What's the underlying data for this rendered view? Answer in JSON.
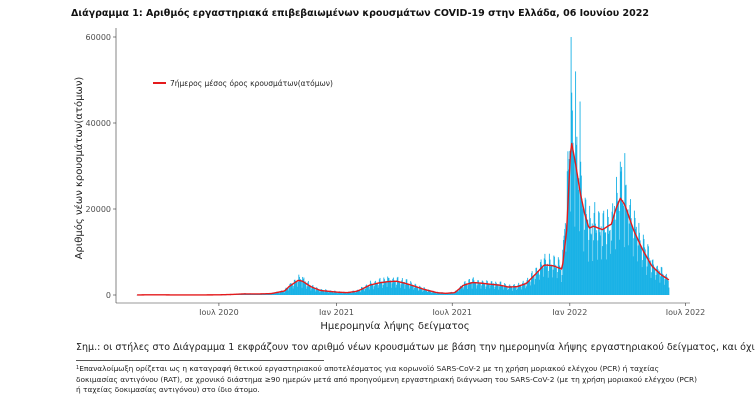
{
  "chart_data": {
    "type": "bar",
    "title": "Διάγραμμα 1: Αριθμός εργαστηριακά επιβεβαιωμένων κρουσμάτων COVID-19 στην Ελλάδα, 06 Ιουνίου 2022",
    "xlabel": "Ημερομηνία λήψης δείγματος",
    "ylabel": "Αριθμός νέων κρουσμάτων(ατόμων)",
    "x_tick_labels": [
      "Ιουλ 2020",
      "Ιαν 2021",
      "Ιουλ 2021",
      "Ιαν 2022",
      "Ιουλ 2022"
    ],
    "y_tick_labels": [
      "0",
      "20000",
      "40000",
      "60000"
    ],
    "ylim": [
      0,
      62000
    ],
    "grid": false,
    "legend_position": "top-left",
    "series": [
      {
        "name": "",
        "kind": "bar",
        "color": "#1AB2E6",
        "description_of_values": "daily new cases by sample date (weekly-resolution estimates)"
      },
      {
        "name": "7ήμερος μέσος όρος κρουσμάτων(ατόμων)",
        "kind": "line",
        "color": "#E41A1C"
      }
    ],
    "x": [
      "2020-02-24",
      "2020-03-16",
      "2020-04-06",
      "2020-04-27",
      "2020-05-18",
      "2020-06-08",
      "2020-06-29",
      "2020-07-20",
      "2020-08-10",
      "2020-08-31",
      "2020-09-21",
      "2020-10-12",
      "2020-10-19",
      "2020-10-26",
      "2020-11-02",
      "2020-11-09",
      "2020-11-16",
      "2020-11-23",
      "2020-11-30",
      "2020-12-07",
      "2020-12-21",
      "2021-01-04",
      "2021-01-18",
      "2021-02-01",
      "2021-02-08",
      "2021-02-22",
      "2021-03-08",
      "2021-03-22",
      "2021-04-05",
      "2021-04-19",
      "2021-05-03",
      "2021-05-17",
      "2021-06-07",
      "2021-06-21",
      "2021-07-05",
      "2021-07-19",
      "2021-08-02",
      "2021-08-16",
      "2021-08-30",
      "2021-09-13",
      "2021-09-27",
      "2021-10-11",
      "2021-10-25",
      "2021-11-08",
      "2021-11-22",
      "2021-12-06",
      "2021-12-20",
      "2021-12-27",
      "2022-01-03",
      "2022-01-10",
      "2022-01-17",
      "2022-01-24",
      "2022-01-31",
      "2022-02-07",
      "2022-02-21",
      "2022-03-07",
      "2022-03-14",
      "2022-03-21",
      "2022-03-28",
      "2022-04-04",
      "2022-04-11",
      "2022-04-25",
      "2022-05-09",
      "2022-05-23",
      "2022-06-05"
    ],
    "values": [
      30,
      60,
      40,
      20,
      10,
      30,
      40,
      150,
      300,
      250,
      350,
      1000,
      2200,
      2800,
      3500,
      3300,
      2600,
      1900,
      1500,
      1100,
      900,
      700,
      600,
      900,
      1300,
      2400,
      2900,
      3200,
      3300,
      2800,
      2100,
      1400,
      600,
      400,
      600,
      2400,
      3000,
      2800,
      2600,
      2400,
      1900,
      2000,
      2800,
      5000,
      7200,
      7000,
      6000,
      22000,
      36000,
      30000,
      24000,
      19000,
      15000,
      16000,
      15000,
      16000,
      20000,
      22000,
      22000,
      19000,
      16000,
      11000,
      7000,
      5000,
      3500
    ],
    "bar_peaks": [
      {
        "x": "2020-11-09",
        "value": 4200
      },
      {
        "x": "2021-03-22",
        "value": 4300
      },
      {
        "x": "2021-08-02",
        "value": 3800
      },
      {
        "x": "2021-11-22",
        "value": 8500
      },
      {
        "x": "2022-01-03",
        "value": 60000
      },
      {
        "x": "2022-01-10",
        "value": 52000
      },
      {
        "x": "2022-01-17",
        "value": 45000
      },
      {
        "x": "2022-03-21",
        "value": 31000
      },
      {
        "x": "2022-03-28",
        "value": 33000
      }
    ],
    "ma_values": [
      20,
      40,
      35,
      15,
      10,
      25,
      35,
      120,
      260,
      240,
      330,
      950,
      2000,
      2700,
      3400,
      3200,
      2500,
      1850,
      1450,
      1050,
      850,
      650,
      550,
      850,
      1250,
      2300,
      2800,
      3100,
      3200,
      2700,
      2050,
      1350,
      550,
      380,
      550,
      2300,
      2900,
      2750,
      2500,
      2300,
      1850,
      1950,
      2700,
      4800,
      7000,
      6800,
      6000,
      15000,
      36000,
      30500,
      24000,
      19000,
      15500,
      16000,
      15200,
      16500,
      20000,
      22500,
      21000,
      18000,
      15000,
      10500,
      6800,
      4800,
      3500
    ]
  },
  "note": "Σημ.: οι στήλες στο Διάγραμμα 1 εκφράζουν τον αριθμό νέων κρουσμάτων με βάση την ημερομηνία λήψης εργαστηριακού δείγματος, και όχι",
  "footnote": {
    "marker": "1",
    "text": "Επαναλοίμωξη ορίζεται ως η καταγραφή θετικού εργαστηριακού αποτελέσματος για κορωνοϊό SARS-CoV-2 με τη χρήση μοριακού ελέγχου (PCR) ή ταχείας δοκιμασίας αντιγόνου (RAT), σε χρονικό διάστημα ≥90 ημερών μετά από προηγούμενη εργαστηριακή διάγνωση του SARS-CoV-2 (με τη χρήση μοριακού ελέγχου (PCR) ή ταχείας δοκιμασίας αντιγόνου) στο ίδιο άτομο."
  }
}
